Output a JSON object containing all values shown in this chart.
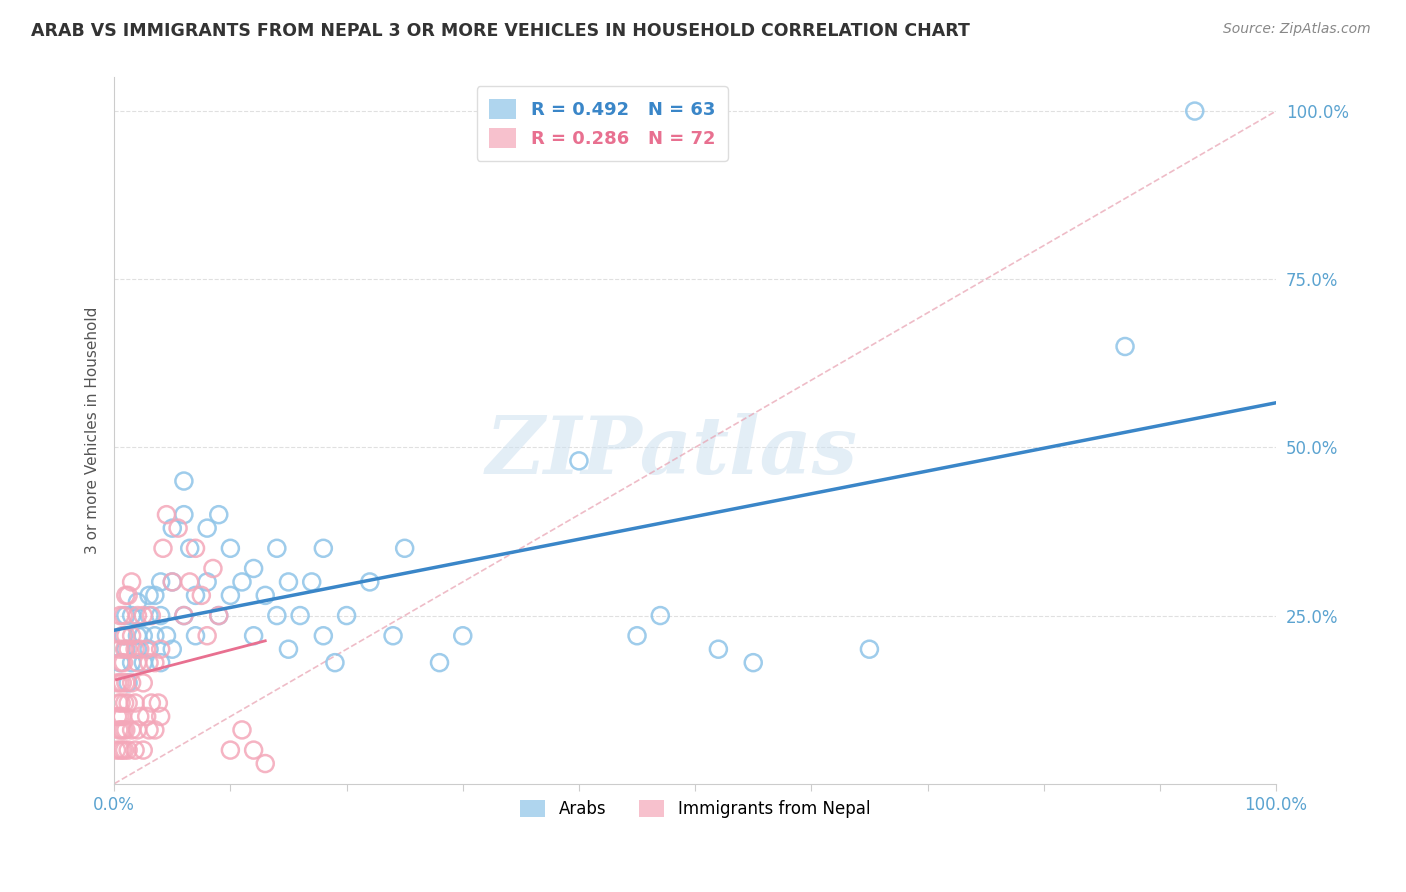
{
  "title": "ARAB VS IMMIGRANTS FROM NEPAL 3 OR MORE VEHICLES IN HOUSEHOLD CORRELATION CHART",
  "source": "Source: ZipAtlas.com",
  "ylabel": "3 or more Vehicles in Household",
  "legend_r_arab": "R = 0.492",
  "legend_n_arab": "N = 63",
  "legend_r_nepal": "R = 0.286",
  "legend_n_nepal": "N = 72",
  "arab_color": "#8ec4e8",
  "nepal_color": "#f4a7b9",
  "arab_line_color": "#3a86c8",
  "nepal_line_color": "#e87090",
  "diagonal_color": "#cccccc",
  "watermark": "ZIPatlas",
  "arab_points": [
    [
      0.005,
      0.18
    ],
    [
      0.008,
      0.22
    ],
    [
      0.01,
      0.2
    ],
    [
      0.01,
      0.25
    ],
    [
      0.012,
      0.15
    ],
    [
      0.015,
      0.18
    ],
    [
      0.015,
      0.25
    ],
    [
      0.02,
      0.22
    ],
    [
      0.02,
      0.27
    ],
    [
      0.02,
      0.2
    ],
    [
      0.025,
      0.18
    ],
    [
      0.025,
      0.22
    ],
    [
      0.03,
      0.2
    ],
    [
      0.03,
      0.25
    ],
    [
      0.03,
      0.28
    ],
    [
      0.035,
      0.22
    ],
    [
      0.035,
      0.28
    ],
    [
      0.04,
      0.18
    ],
    [
      0.04,
      0.25
    ],
    [
      0.04,
      0.3
    ],
    [
      0.045,
      0.22
    ],
    [
      0.05,
      0.2
    ],
    [
      0.05,
      0.3
    ],
    [
      0.05,
      0.38
    ],
    [
      0.06,
      0.25
    ],
    [
      0.06,
      0.4
    ],
    [
      0.06,
      0.45
    ],
    [
      0.065,
      0.35
    ],
    [
      0.07,
      0.22
    ],
    [
      0.07,
      0.28
    ],
    [
      0.08,
      0.3
    ],
    [
      0.08,
      0.38
    ],
    [
      0.09,
      0.25
    ],
    [
      0.09,
      0.4
    ],
    [
      0.1,
      0.28
    ],
    [
      0.1,
      0.35
    ],
    [
      0.11,
      0.3
    ],
    [
      0.12,
      0.22
    ],
    [
      0.12,
      0.32
    ],
    [
      0.13,
      0.28
    ],
    [
      0.14,
      0.25
    ],
    [
      0.14,
      0.35
    ],
    [
      0.15,
      0.2
    ],
    [
      0.15,
      0.3
    ],
    [
      0.16,
      0.25
    ],
    [
      0.17,
      0.3
    ],
    [
      0.18,
      0.22
    ],
    [
      0.18,
      0.35
    ],
    [
      0.19,
      0.18
    ],
    [
      0.2,
      0.25
    ],
    [
      0.22,
      0.3
    ],
    [
      0.24,
      0.22
    ],
    [
      0.25,
      0.35
    ],
    [
      0.28,
      0.18
    ],
    [
      0.3,
      0.22
    ],
    [
      0.4,
      0.48
    ],
    [
      0.45,
      0.22
    ],
    [
      0.47,
      0.25
    ],
    [
      0.52,
      0.2
    ],
    [
      0.55,
      0.18
    ],
    [
      0.65,
      0.2
    ],
    [
      0.87,
      0.65
    ],
    [
      0.93,
      1.0
    ]
  ],
  "nepal_points": [
    [
      0.002,
      0.05
    ],
    [
      0.003,
      0.1
    ],
    [
      0.003,
      0.15
    ],
    [
      0.004,
      0.08
    ],
    [
      0.004,
      0.12
    ],
    [
      0.005,
      0.05
    ],
    [
      0.005,
      0.1
    ],
    [
      0.005,
      0.15
    ],
    [
      0.005,
      0.2
    ],
    [
      0.005,
      0.25
    ],
    [
      0.006,
      0.08
    ],
    [
      0.006,
      0.12
    ],
    [
      0.006,
      0.18
    ],
    [
      0.007,
      0.05
    ],
    [
      0.007,
      0.1
    ],
    [
      0.007,
      0.15
    ],
    [
      0.007,
      0.22
    ],
    [
      0.008,
      0.08
    ],
    [
      0.008,
      0.18
    ],
    [
      0.008,
      0.25
    ],
    [
      0.009,
      0.05
    ],
    [
      0.009,
      0.12
    ],
    [
      0.009,
      0.2
    ],
    [
      0.01,
      0.08
    ],
    [
      0.01,
      0.15
    ],
    [
      0.01,
      0.22
    ],
    [
      0.01,
      0.28
    ],
    [
      0.012,
      0.05
    ],
    [
      0.012,
      0.12
    ],
    [
      0.012,
      0.2
    ],
    [
      0.012,
      0.28
    ],
    [
      0.015,
      0.08
    ],
    [
      0.015,
      0.15
    ],
    [
      0.015,
      0.22
    ],
    [
      0.015,
      0.3
    ],
    [
      0.018,
      0.05
    ],
    [
      0.018,
      0.12
    ],
    [
      0.018,
      0.2
    ],
    [
      0.02,
      0.08
    ],
    [
      0.02,
      0.18
    ],
    [
      0.02,
      0.25
    ],
    [
      0.022,
      0.1
    ],
    [
      0.022,
      0.2
    ],
    [
      0.025,
      0.05
    ],
    [
      0.025,
      0.15
    ],
    [
      0.025,
      0.25
    ],
    [
      0.028,
      0.1
    ],
    [
      0.028,
      0.2
    ],
    [
      0.03,
      0.08
    ],
    [
      0.03,
      0.18
    ],
    [
      0.032,
      0.12
    ],
    [
      0.032,
      0.25
    ],
    [
      0.035,
      0.08
    ],
    [
      0.035,
      0.18
    ],
    [
      0.038,
      0.12
    ],
    [
      0.04,
      0.1
    ],
    [
      0.04,
      0.2
    ],
    [
      0.042,
      0.35
    ],
    [
      0.045,
      0.4
    ],
    [
      0.05,
      0.3
    ],
    [
      0.055,
      0.38
    ],
    [
      0.06,
      0.25
    ],
    [
      0.065,
      0.3
    ],
    [
      0.07,
      0.35
    ],
    [
      0.075,
      0.28
    ],
    [
      0.08,
      0.22
    ],
    [
      0.085,
      0.32
    ],
    [
      0.09,
      0.25
    ],
    [
      0.1,
      0.05
    ],
    [
      0.11,
      0.08
    ],
    [
      0.12,
      0.05
    ],
    [
      0.13,
      0.03
    ]
  ],
  "background_color": "#ffffff",
  "grid_color": "#dddddd",
  "title_color": "#333333",
  "tick_color": "#5ba3d0"
}
